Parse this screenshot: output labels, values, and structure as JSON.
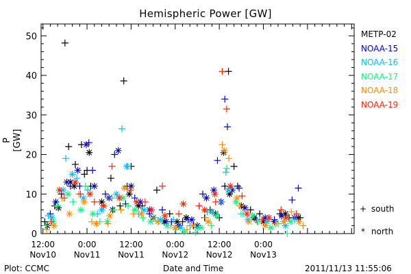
{
  "chart_data": {
    "type": "scatter",
    "title": "Hemispheric Power [GW]",
    "ylabel": "P [GW]",
    "xlabel": "Date and Time",
    "ylim": [
      0,
      53
    ],
    "yticks": [
      0,
      10,
      20,
      30,
      40,
      50
    ],
    "xlim": [
      -0.5,
      84.7
    ],
    "x_units": "hours since 2011-11-10 12:00 UT",
    "xticks": [
      {
        "x": 0,
        "time": "12:00",
        "date": "Nov10"
      },
      {
        "x": 12,
        "time": "0:00",
        "date": "Nov11"
      },
      {
        "x": 24,
        "time": "12:00",
        "date": "Nov11"
      },
      {
        "x": 36,
        "time": "0:00",
        "date": "Nov12"
      },
      {
        "x": 48,
        "time": "12:00",
        "date": "Nov12"
      },
      {
        "x": 60,
        "time": "0:00",
        "date": "Nov13"
      }
    ],
    "series": [
      {
        "name": "METP-02",
        "color": "#000000",
        "south": [
          [
            0.5,
            3
          ],
          [
            3.2,
            7
          ],
          [
            6,
            48.2
          ],
          [
            7,
            22
          ],
          [
            8.8,
            17.5
          ],
          [
            10.5,
            22.5
          ],
          [
            11.3,
            15
          ],
          [
            12,
            16
          ],
          [
            13,
            12
          ],
          [
            18.5,
            14
          ],
          [
            21,
            7
          ],
          [
            22,
            38.6
          ],
          [
            22.9,
            12
          ],
          [
            24,
            17
          ],
          [
            27,
            7
          ],
          [
            31,
            11
          ],
          [
            34.5,
            5
          ],
          [
            38,
            3
          ],
          [
            41,
            2
          ],
          [
            44,
            4
          ],
          [
            45.5,
            6
          ],
          [
            48,
            4
          ],
          [
            49.5,
            12
          ],
          [
            50.5,
            41
          ],
          [
            52,
            17
          ],
          [
            53,
            12
          ],
          [
            56.5,
            6
          ],
          [
            59,
            5
          ],
          [
            64.5,
            5
          ],
          [
            67,
            4
          ],
          [
            70,
            4
          ]
        ],
        "north": [
          [
            1.2,
            2
          ],
          [
            4.2,
            6.5
          ],
          [
            7.5,
            13
          ],
          [
            8.5,
            12
          ],
          [
            12.6,
            20.5
          ],
          [
            16,
            8
          ],
          [
            19,
            6
          ],
          [
            23.5,
            10
          ],
          [
            26,
            7
          ],
          [
            30,
            4
          ],
          [
            33,
            3
          ],
          [
            36.5,
            3
          ],
          [
            39,
            4
          ],
          [
            42,
            2
          ],
          [
            47,
            5
          ],
          [
            49.2,
            20.5
          ],
          [
            50.8,
            10
          ],
          [
            54,
            7
          ],
          [
            57.5,
            4
          ],
          [
            60,
            3
          ],
          [
            63,
            3
          ],
          [
            66,
            5
          ],
          [
            69.5,
            4
          ]
        ]
      },
      {
        "name": "NOAA-15",
        "color": "#0000cd",
        "south": [
          [
            2,
            5
          ],
          [
            5,
            10
          ],
          [
            7.5,
            12
          ],
          [
            10,
            12
          ],
          [
            12.5,
            23
          ],
          [
            13.5,
            16
          ],
          [
            17,
            10
          ],
          [
            19.5,
            20
          ],
          [
            22.5,
            7.5
          ],
          [
            25,
            9
          ],
          [
            29,
            5
          ],
          [
            32.5,
            6
          ],
          [
            35,
            3
          ],
          [
            39.5,
            3.5
          ],
          [
            43.5,
            10
          ],
          [
            47.5,
            18.5
          ],
          [
            49.5,
            34
          ],
          [
            50.2,
            27
          ],
          [
            53.4,
            11.5
          ],
          [
            58,
            3.5
          ],
          [
            63,
            3.5
          ],
          [
            67.8,
            8.5
          ],
          [
            69.5,
            11.5
          ]
        ],
        "north": [
          [
            3.5,
            8
          ],
          [
            6.5,
            13
          ],
          [
            9.5,
            16
          ],
          [
            11.8,
            22.5
          ],
          [
            14,
            12
          ],
          [
            18,
            9
          ],
          [
            20.5,
            21
          ],
          [
            24,
            12
          ],
          [
            26.5,
            8
          ],
          [
            29,
            6
          ],
          [
            33.5,
            3
          ],
          [
            37,
            2
          ],
          [
            40.5,
            3.5
          ],
          [
            44.5,
            9
          ],
          [
            46.5,
            11
          ],
          [
            48.5,
            8
          ],
          [
            51.5,
            11
          ],
          [
            55,
            6.5
          ],
          [
            60.5,
            4
          ],
          [
            65,
            4.5
          ],
          [
            68.5,
            4
          ]
        ]
      },
      {
        "name": "NOAA-16",
        "color": "#00bfff",
        "south": [
          [
            1.5,
            4.5
          ],
          [
            6.2,
            19
          ],
          [
            9.2,
            14
          ],
          [
            12.2,
            11
          ],
          [
            14.8,
            5
          ],
          [
            18.8,
            9
          ],
          [
            21.5,
            26.5
          ],
          [
            23,
            17
          ],
          [
            26,
            5
          ],
          [
            30.5,
            4
          ],
          [
            35.5,
            3.5
          ],
          [
            40,
            2
          ],
          [
            44.7,
            5.5
          ],
          [
            48.3,
            8
          ],
          [
            49.8,
            15.5
          ],
          [
            51.2,
            11.5
          ],
          [
            54.5,
            5
          ],
          [
            59,
            3.5
          ],
          [
            64,
            2.5
          ],
          [
            68.5,
            3.5
          ]
        ],
        "north": [
          [
            2.5,
            4
          ],
          [
            5.5,
            11
          ],
          [
            8,
            15
          ],
          [
            11,
            9
          ],
          [
            16,
            6
          ],
          [
            20,
            10
          ],
          [
            22.8,
            17
          ],
          [
            27.5,
            6
          ],
          [
            32,
            3.5
          ],
          [
            37.5,
            1.5
          ],
          [
            42,
            1.5
          ],
          [
            46,
            5.5
          ],
          [
            50.4,
            11
          ],
          [
            55.8,
            3.5
          ],
          [
            61,
            3
          ],
          [
            66,
            2
          ]
        ]
      },
      {
        "name": "NOAA-17",
        "color": "#00ff7f",
        "south": [
          [
            0.8,
            2
          ],
          [
            4,
            7
          ],
          [
            8.2,
            8
          ],
          [
            11.6,
            12
          ],
          [
            15.5,
            3
          ],
          [
            19.2,
            6
          ],
          [
            23.2,
            7
          ],
          [
            27.2,
            4
          ],
          [
            31.5,
            3
          ],
          [
            36.2,
            1
          ],
          [
            41.5,
            0.3
          ],
          [
            45.8,
            2
          ],
          [
            50,
            16.5
          ],
          [
            53.9,
            5
          ],
          [
            58.5,
            3
          ],
          [
            63.5,
            2.5
          ],
          [
            66.5,
            0
          ]
        ],
        "north": [
          [
            2.8,
            3
          ],
          [
            6.8,
            10
          ],
          [
            10.3,
            6
          ],
          [
            13.6,
            5
          ],
          [
            17.5,
            3
          ],
          [
            21.8,
            9
          ],
          [
            25,
            6
          ],
          [
            29.3,
            3
          ],
          [
            33.8,
            2
          ],
          [
            38.5,
            0.5
          ],
          [
            43,
            1.5
          ],
          [
            47.3,
            4.5
          ],
          [
            52.5,
            8
          ],
          [
            57,
            4.5
          ],
          [
            62,
            1.5
          ],
          [
            67.4,
            3
          ]
        ]
      },
      {
        "name": "NOAA-18",
        "color": "#ff8c00",
        "south": [
          [
            1,
            1
          ],
          [
            5.2,
            9
          ],
          [
            9.8,
            10
          ],
          [
            13.3,
            3
          ],
          [
            17.7,
            2.5
          ],
          [
            21.2,
            6
          ],
          [
            24.6,
            5
          ],
          [
            30,
            4
          ],
          [
            34.8,
            2
          ],
          [
            39.2,
            1
          ],
          [
            44.2,
            4
          ],
          [
            48.8,
            22.5
          ],
          [
            50.6,
            19
          ],
          [
            53.6,
            7
          ],
          [
            58.3,
            3
          ],
          [
            63.2,
            2.5
          ],
          [
            67.6,
            5.5
          ],
          [
            70.8,
            2
          ]
        ],
        "north": [
          [
            3,
            2
          ],
          [
            7.2,
            5
          ],
          [
            11.2,
            8
          ],
          [
            14.5,
            2.5
          ],
          [
            18.2,
            4.5
          ],
          [
            22.2,
            11.5
          ],
          [
            26.8,
            5
          ],
          [
            31.2,
            3
          ],
          [
            36,
            1.5
          ],
          [
            40.8,
            2
          ],
          [
            45,
            3
          ],
          [
            49.4,
            21
          ],
          [
            52.8,
            9
          ],
          [
            56,
            3
          ],
          [
            60.5,
            2
          ],
          [
            65.5,
            3
          ],
          [
            69.7,
            3
          ]
        ]
      },
      {
        "name": "NOAA-19",
        "color": "#ff2200",
        "south": [
          [
            2.2,
            3
          ],
          [
            5.8,
            9
          ],
          [
            10.2,
            10
          ],
          [
            14,
            8
          ],
          [
            18.8,
            17
          ],
          [
            23.8,
            11
          ],
          [
            27.8,
            8
          ],
          [
            32.5,
            12
          ],
          [
            37,
            5
          ],
          [
            42.5,
            7
          ],
          [
            47,
            8
          ],
          [
            48.8,
            41
          ],
          [
            50,
            31.5
          ],
          [
            54.2,
            9.5
          ],
          [
            59.6,
            3.5
          ],
          [
            64.8,
            6
          ],
          [
            69,
            5
          ]
        ],
        "north": [
          [
            4.5,
            11
          ],
          [
            8.8,
            13
          ],
          [
            12.8,
            10
          ],
          [
            16.5,
            7
          ],
          [
            20.8,
            9
          ],
          [
            25.5,
            8
          ],
          [
            29.5,
            6
          ],
          [
            33.2,
            4.5
          ],
          [
            38.2,
            7.5
          ],
          [
            44,
            6
          ],
          [
            46.8,
            10
          ],
          [
            51,
            12
          ],
          [
            55.5,
            5
          ],
          [
            61.5,
            4
          ],
          [
            66.2,
            4
          ]
        ]
      }
    ],
    "legend_position": "right",
    "marker_legend": [
      {
        "symbol": "+",
        "label": "south"
      },
      {
        "symbol": "*",
        "label": "north"
      }
    ],
    "grid": false
  },
  "footer": {
    "left": "Plot: CCMC",
    "right": "2011/11/13 11:55:06"
  }
}
